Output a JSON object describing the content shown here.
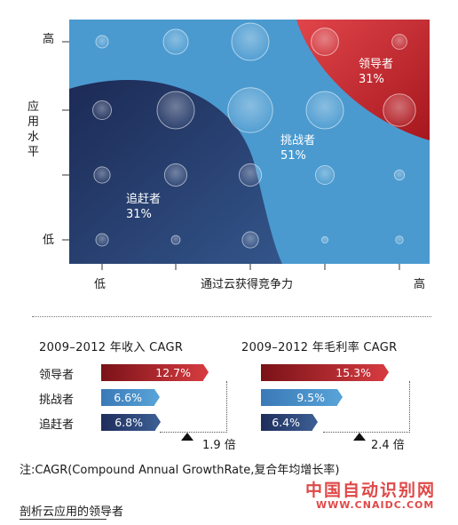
{
  "chart_data": [
    {
      "type": "scatter",
      "ylabel": "应用水平",
      "xlabel": "通过云获得竞争力",
      "x_ticks": [
        "低",
        "",
        "",
        "",
        "高"
      ],
      "y_ticks": [
        "高",
        "",
        "",
        "低"
      ],
      "segments": [
        {
          "name": "领导者",
          "value": "31%",
          "color": "#c9272d"
        },
        {
          "name": "挑战者",
          "value": "51%",
          "color": "#3d8fc9"
        },
        {
          "name": "追赶者",
          "value": "31%",
          "color": "#243a6e"
        }
      ],
      "bubbles": [
        {
          "x": 0,
          "y": 3,
          "s": 1.0
        },
        {
          "x": 1,
          "y": 3,
          "s": 2.0
        },
        {
          "x": 2,
          "y": 3,
          "s": 3.0
        },
        {
          "x": 3,
          "y": 3,
          "s": 2.2
        },
        {
          "x": 4,
          "y": 3,
          "s": 1.2
        },
        {
          "x": 0,
          "y": 2,
          "s": 1.5
        },
        {
          "x": 1,
          "y": 2,
          "s": 3.0
        },
        {
          "x": 2,
          "y": 2,
          "s": 3.6
        },
        {
          "x": 3,
          "y": 2,
          "s": 3.0
        },
        {
          "x": 4,
          "y": 2,
          "s": 2.6
        },
        {
          "x": 0,
          "y": 1,
          "s": 1.3
        },
        {
          "x": 1,
          "y": 1,
          "s": 1.8
        },
        {
          "x": 2,
          "y": 1,
          "s": 1.8
        },
        {
          "x": 3,
          "y": 1,
          "s": 1.5
        },
        {
          "x": 4,
          "y": 1,
          "s": 0.8
        },
        {
          "x": 0,
          "y": 0,
          "s": 1.0
        },
        {
          "x": 1,
          "y": 0,
          "s": 0.7
        },
        {
          "x": 2,
          "y": 0,
          "s": 1.3
        },
        {
          "x": 3,
          "y": 0,
          "s": 0.5
        },
        {
          "x": 4,
          "y": 0,
          "s": 0.6
        }
      ]
    },
    {
      "type": "bar",
      "title": "2009–2012 年收入 CAGR",
      "categories": [
        "领导者",
        "挑战者",
        "追赶者"
      ],
      "values": [
        12.7,
        6.6,
        6.8
      ],
      "value_labels": [
        "12.7%",
        "6.6%",
        "6.8%"
      ],
      "annotation": "1.9 倍"
    },
    {
      "type": "bar",
      "title": "2009–2012 年毛利率 CAGR",
      "categories": [
        "领导者",
        "挑战者",
        "追赶者"
      ],
      "values": [
        15.3,
        9.5,
        6.4
      ],
      "value_labels": [
        "15.3%",
        "9.5%",
        "6.4%"
      ],
      "annotation": "2.4 倍"
    }
  ],
  "note": "注:CAGR(Compound Annual GrowthRate,复合年均增长率)",
  "caption": "剖析云应用的领导者",
  "watermark": {
    "name": "中国自动识别网",
    "url": "WWW.CNAIDC.COM"
  }
}
